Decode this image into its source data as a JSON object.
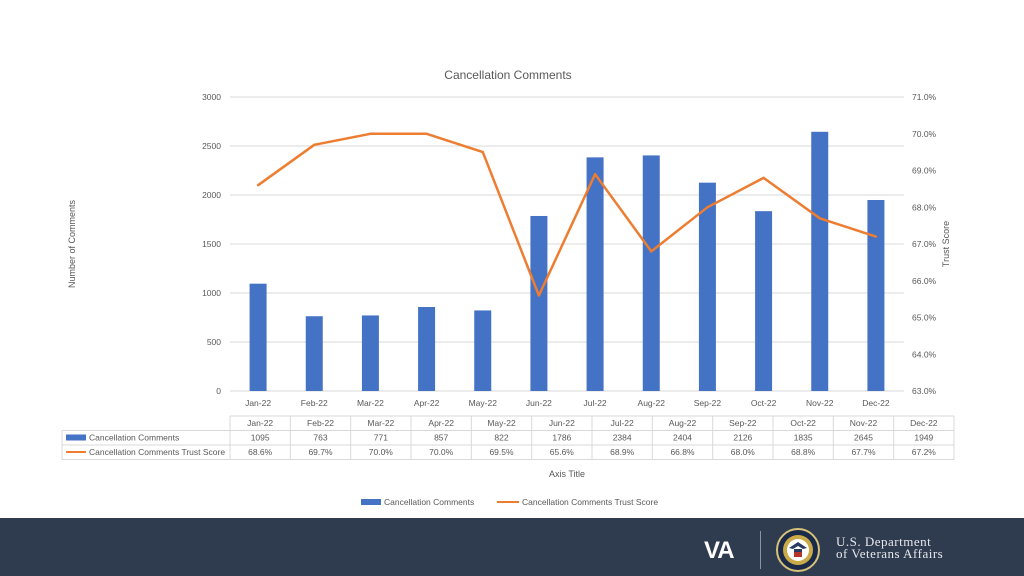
{
  "chart_data": {
    "type": "bar+line",
    "title": "Cancellation Comments",
    "categories": [
      "Jan-22",
      "Feb-22",
      "Mar-22",
      "Apr-22",
      "May-22",
      "Jun-22",
      "Jul-22",
      "Aug-22",
      "Sep-22",
      "Oct-22",
      "Nov-22",
      "Dec-22"
    ],
    "series": [
      {
        "name": "Cancellation Comments",
        "type": "bar",
        "axis": "left",
        "color": "#4472c4",
        "values": [
          1095,
          763,
          771,
          857,
          822,
          1786,
          2384,
          2404,
          2126,
          1835,
          2645,
          1949
        ]
      },
      {
        "name": "Cancellation Comments Trust Score",
        "type": "line",
        "axis": "right",
        "color": "#ed7d31",
        "values": [
          68.6,
          69.7,
          70.0,
          70.0,
          69.5,
          65.6,
          68.9,
          66.8,
          68.0,
          68.8,
          67.7,
          67.2
        ]
      }
    ],
    "y_left": {
      "label": "Number of Comments",
      "min": 0,
      "max": 3000,
      "ticks": [
        "0",
        "500",
        "1000",
        "1500",
        "2000",
        "2500",
        "3000"
      ]
    },
    "y_right": {
      "label": "Trust Score",
      "min": 63.0,
      "max": 71.0,
      "ticks": [
        "63.0%",
        "64.0%",
        "65.0%",
        "66.0%",
        "67.0%",
        "68.0%",
        "69.0%",
        "70.0%",
        "71.0%"
      ]
    },
    "xlabel": "Axis Title",
    "table": {
      "rows": [
        {
          "label": "Cancellation Comments",
          "cells": [
            "1095",
            "763",
            "771",
            "857",
            "822",
            "1786",
            "2384",
            "2404",
            "2126",
            "1835",
            "2645",
            "1949"
          ]
        },
        {
          "label": "Cancellation Comments Trust Score",
          "cells": [
            "68.6%",
            "69.7%",
            "70.0%",
            "70.0%",
            "69.5%",
            "65.6%",
            "68.9%",
            "66.8%",
            "68.0%",
            "68.8%",
            "67.7%",
            "67.2%"
          ]
        }
      ]
    },
    "legend": [
      "Cancellation Comments",
      "Cancellation Comments Trust Score"
    ],
    "legend_position": "bottom",
    "grid": true
  },
  "footer": {
    "logo_text": "VA",
    "dept_line1": "U.S. Department",
    "dept_line2": "of Veterans Affairs",
    "background_color": "#2f3b4f"
  }
}
